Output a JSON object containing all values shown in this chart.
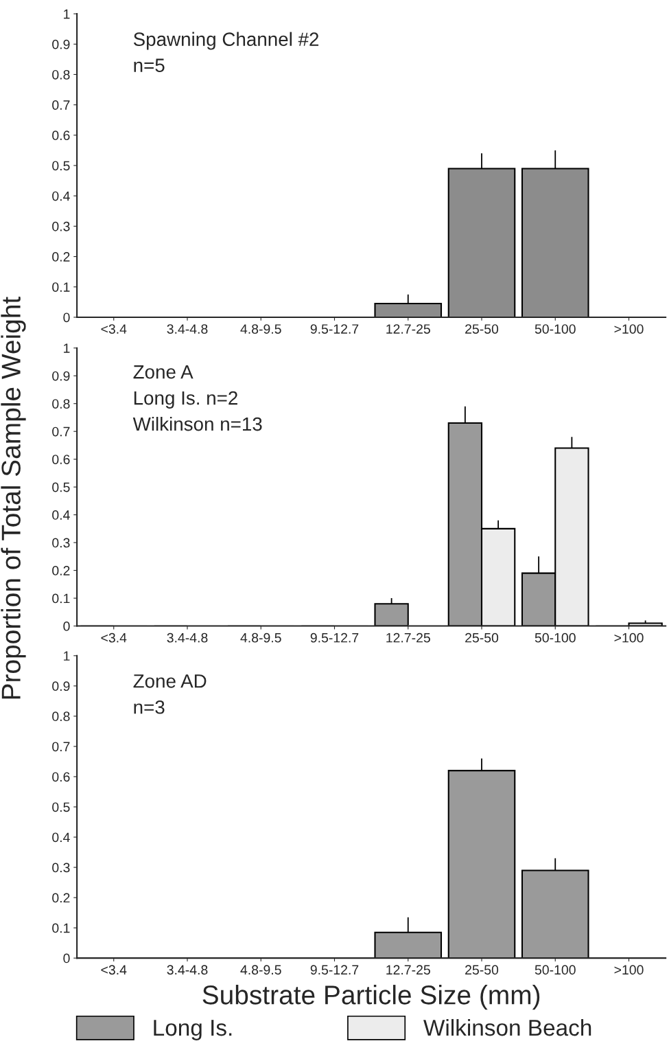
{
  "chart_data": [
    {
      "type": "bar",
      "categories": [
        "<3.4",
        "3.4-4.8",
        "4.8-9.5",
        "9.5-12.7",
        "12.7-25",
        "25-50",
        "50-100",
        ">100"
      ],
      "series": [
        {
          "color": "#8c8c8c",
          "values": [
            0,
            0,
            0,
            0,
            0.045,
            0.49,
            0.49,
            0
          ],
          "errors": [
            null,
            null,
            null,
            null,
            0.03,
            0.05,
            0.06,
            null
          ]
        }
      ],
      "ylim": [
        0,
        1
      ],
      "yticks": [
        0,
        0.1,
        0.2,
        0.3,
        0.4,
        0.5,
        0.6,
        0.7,
        0.8,
        0.9,
        1
      ],
      "grid": false,
      "annotations": [
        "Spawning Channel #2\nn=5"
      ]
    },
    {
      "type": "bar",
      "categories": [
        "<3.4",
        "3.4-4.8",
        "4.8-9.5",
        "9.5-12.7",
        "12.7-25",
        "25-50",
        "50-100",
        ">100"
      ],
      "series": [
        {
          "name": "Long Is.",
          "color": "#9a9a9a",
          "values": [
            0,
            0,
            0,
            0,
            0.08,
            0.73,
            0.19,
            0
          ],
          "errors": [
            null,
            null,
            null,
            null,
            0.02,
            0.06,
            0.06,
            null
          ]
        },
        {
          "name": "Wilkinson Beach",
          "color": "#ececec",
          "values": [
            0,
            0,
            0,
            0,
            0,
            0.35,
            0.64,
            0.01
          ],
          "errors": [
            null,
            null,
            null,
            null,
            null,
            0.03,
            0.04,
            0.01
          ]
        }
      ],
      "ylim": [
        0,
        1
      ],
      "yticks": [
        0,
        0.1,
        0.2,
        0.3,
        0.4,
        0.5,
        0.6,
        0.7,
        0.8,
        0.9,
        1
      ],
      "grid": false,
      "legend": "bottom",
      "ylabel": "Proportion of Total Sample Weight",
      "annotations": [
        "Zone A\nLong Is. n=2\nWilkinson n=13"
      ]
    },
    {
      "type": "bar",
      "categories": [
        "<3.4",
        "3.4-4.8",
        "4.8-9.5",
        "9.5-12.7",
        "12.7-25",
        "25-50",
        "50-100",
        ">100"
      ],
      "series": [
        {
          "color": "#9a9a9a",
          "values": [
            0,
            0,
            0,
            0,
            0.085,
            0.62,
            0.29,
            0
          ],
          "errors": [
            null,
            null,
            null,
            null,
            0.05,
            0.04,
            0.04,
            null
          ]
        }
      ],
      "ylim": [
        0,
        1
      ],
      "yticks": [
        0,
        0.1,
        0.2,
        0.3,
        0.4,
        0.5,
        0.6,
        0.7,
        0.8,
        0.9,
        1
      ],
      "grid": false,
      "xlabel": "Substrate Particle Size (mm)",
      "annotations": [
        "Zone AD\nn=3"
      ]
    }
  ]
}
